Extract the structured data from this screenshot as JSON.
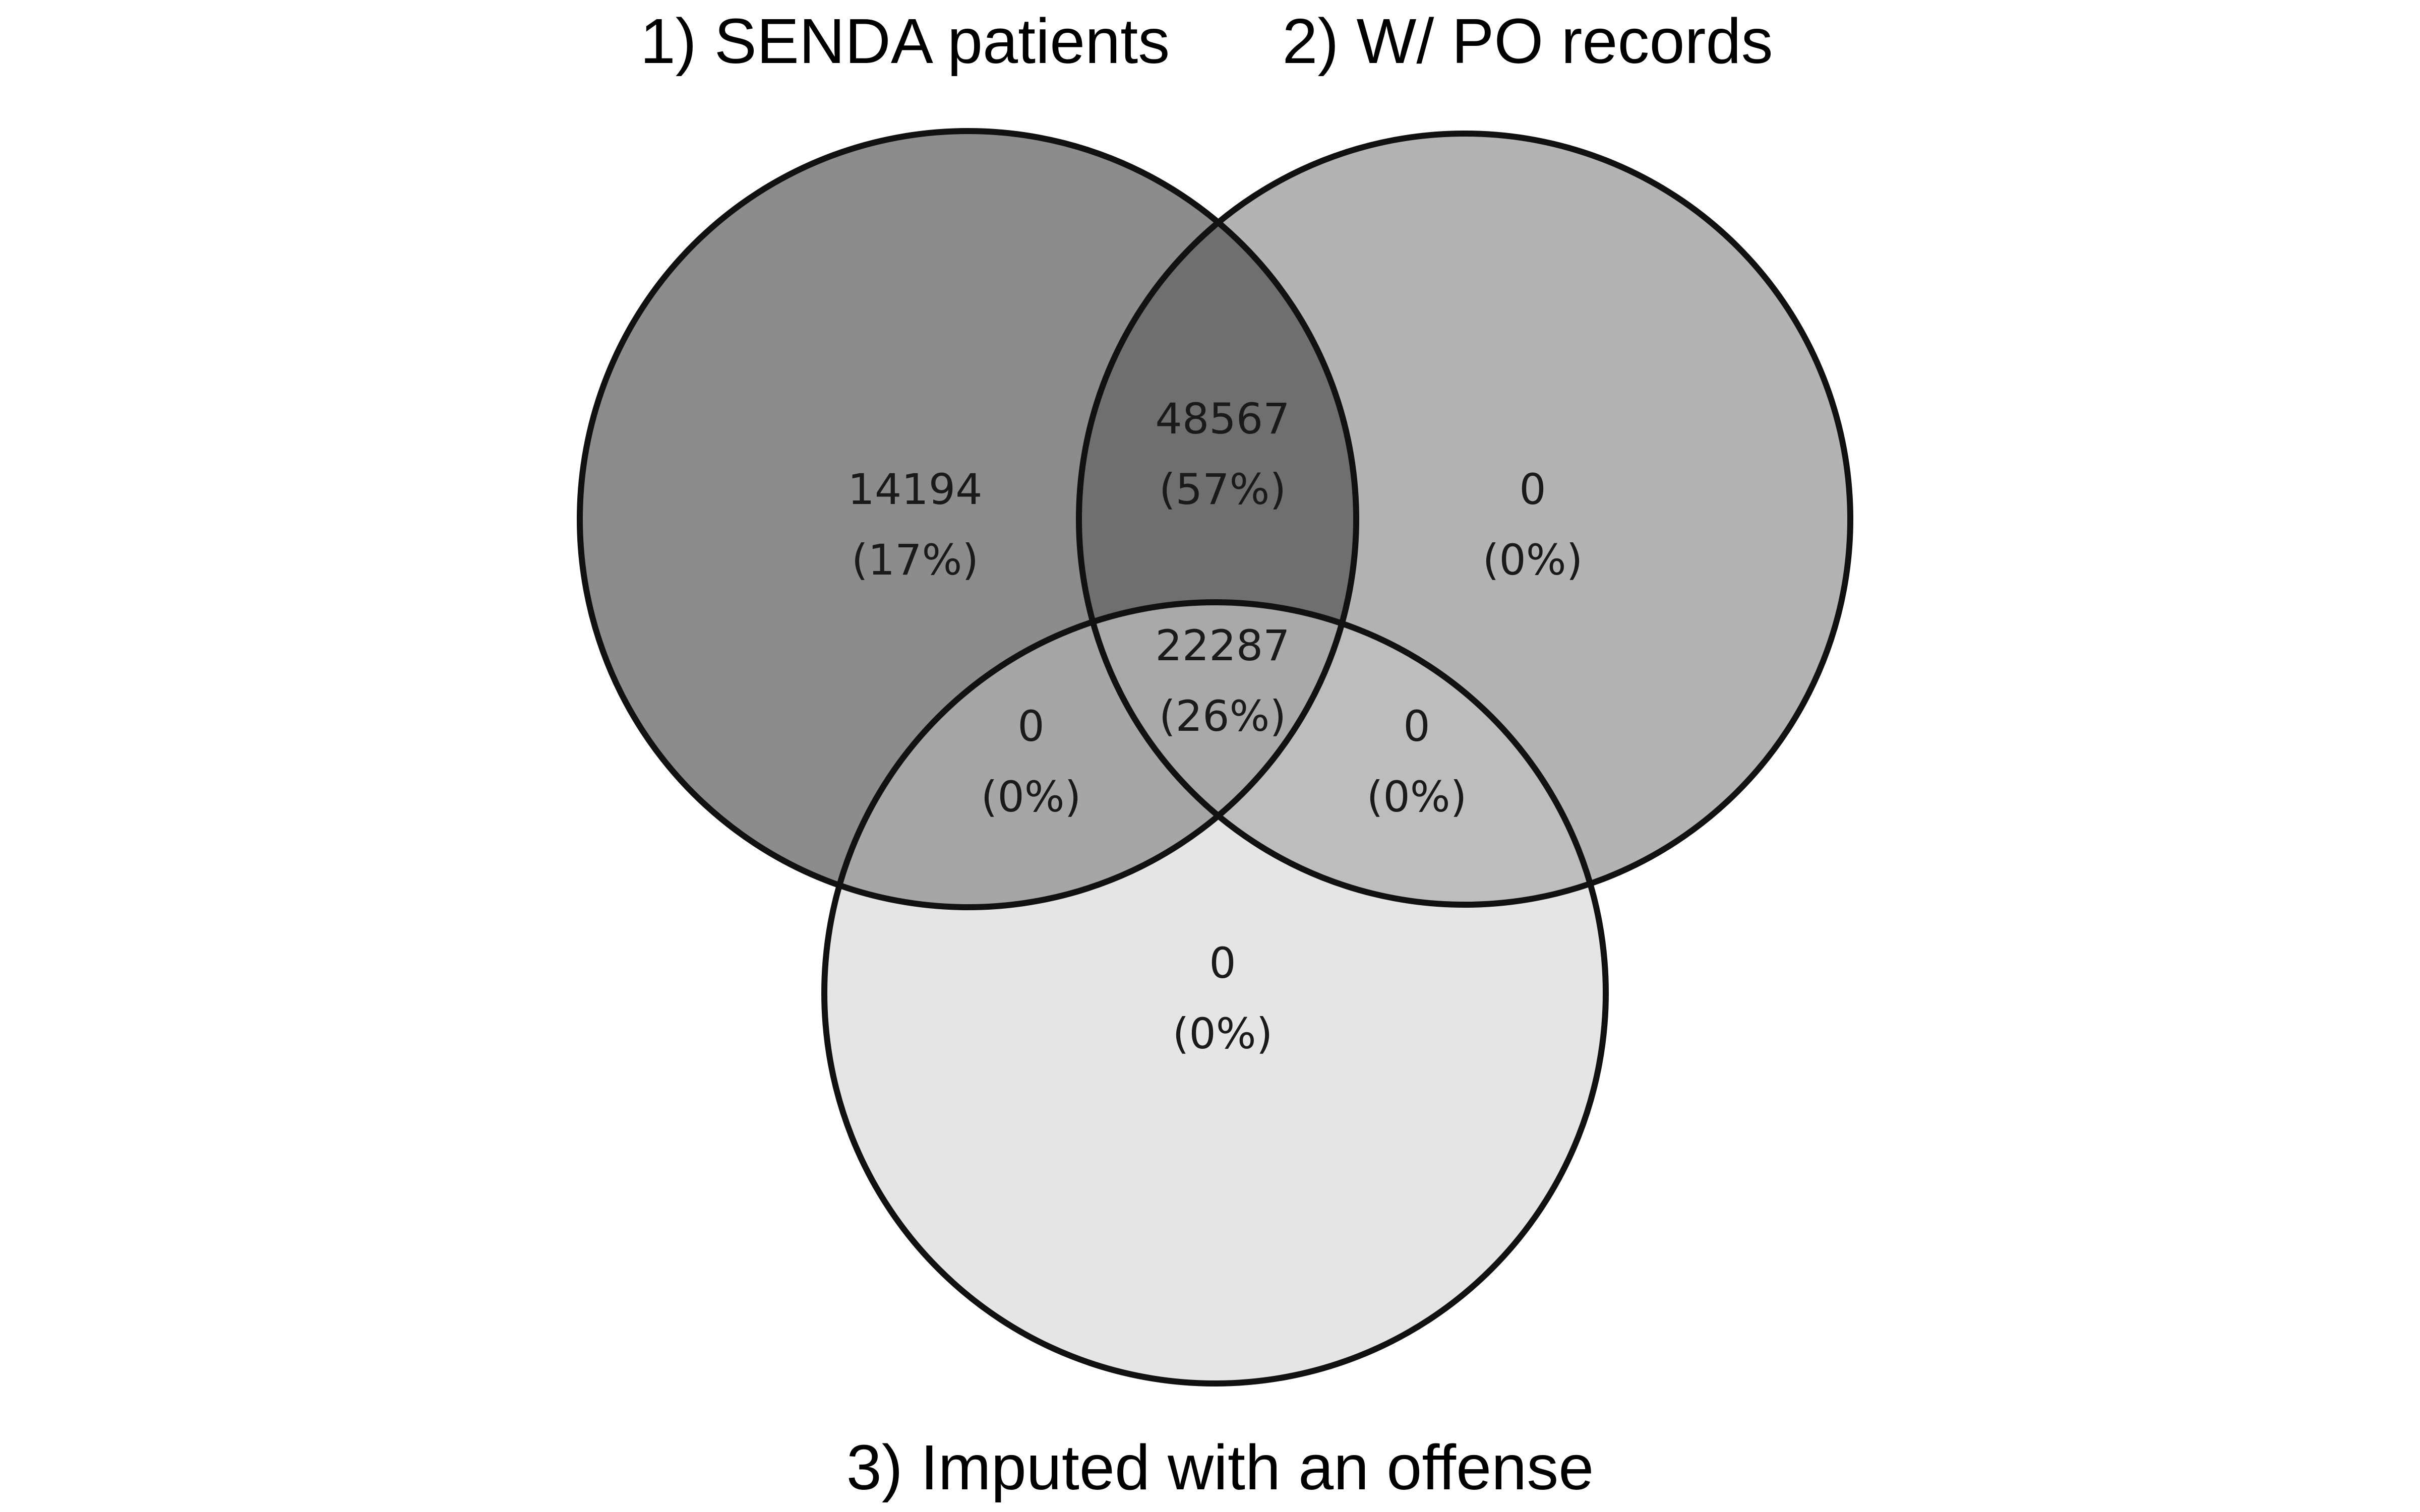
{
  "sets": [
    {
      "label": "1) SENDA patients"
    },
    {
      "label": "2) W/ PO records"
    },
    {
      "label": "3) Imputed with an offense"
    }
  ],
  "regions": {
    "only_1": {
      "count": "14194",
      "percent": "(17%)"
    },
    "only_2": {
      "count": "0",
      "percent": "(0%)"
    },
    "only_3": {
      "count": "0",
      "percent": "(0%)"
    },
    "r_12": {
      "count": "48567",
      "percent": "(57%)"
    },
    "r_13": {
      "count": "0",
      "percent": "(0%)"
    },
    "r_23": {
      "count": "0",
      "percent": "(0%)"
    },
    "r_123": {
      "count": "22287",
      "percent": "(26%)"
    }
  },
  "colors": {
    "region_only_1": "#8c8c8c",
    "region_only_2": "#b3b3b3",
    "region_only_3": "#e5e5e5",
    "region_12": "#6f6f6f",
    "region_13": "#a6a6a6",
    "region_23": "#bdbdbd",
    "region_123": "#a9a9a9",
    "outline": "#111111"
  }
}
